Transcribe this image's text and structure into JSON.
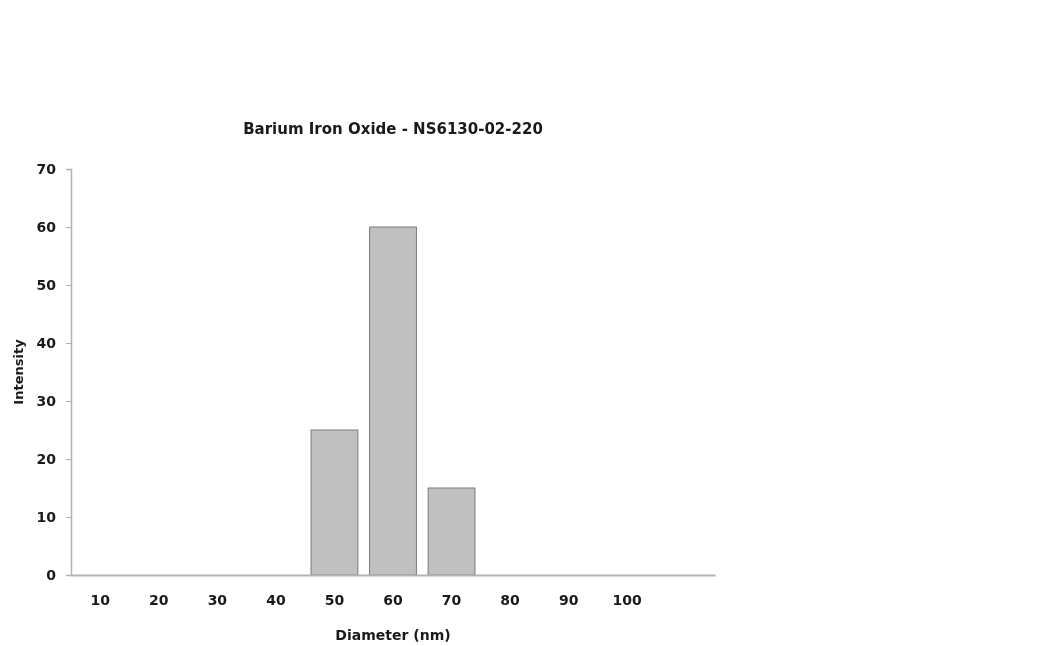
{
  "chart_data": {
    "type": "bar",
    "title": "Barium Iron Oxide - NS6130-02-220",
    "xlabel": "Diameter (nm)",
    "ylabel": "Intensity",
    "categories": [
      "10",
      "20",
      "30",
      "40",
      "50",
      "60",
      "70",
      "80",
      "90",
      "100",
      null
    ],
    "values": [
      0,
      0,
      0,
      0,
      25,
      60,
      15,
      0,
      0,
      0,
      0
    ],
    "color": "#c0c0c0",
    "ylim": [
      0,
      70
    ],
    "yticks": [
      0,
      10,
      20,
      30,
      40,
      50,
      60,
      70
    ]
  }
}
